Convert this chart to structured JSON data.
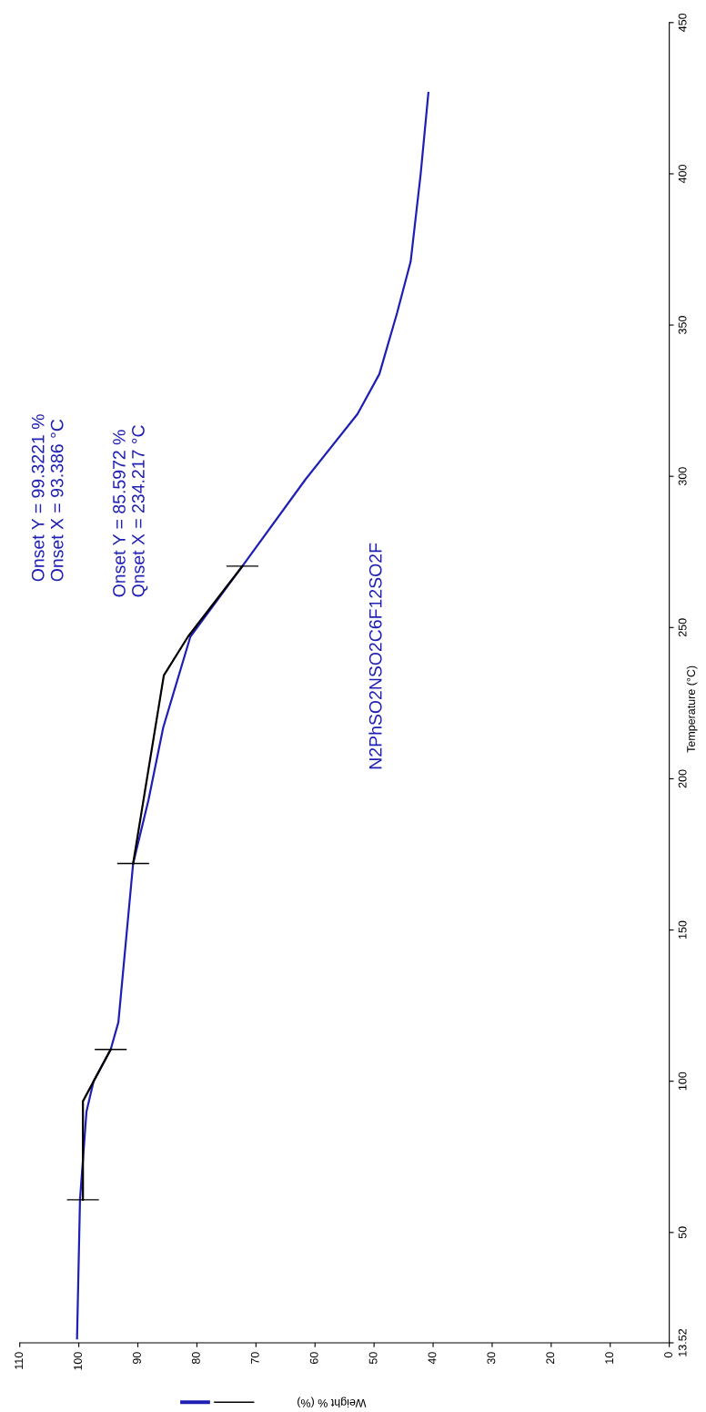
{
  "chart_data": {
    "type": "line",
    "xlabel": "Weight % (%)",
    "ylabel": "Temperature (°C)",
    "xlim": [
      110,
      0
    ],
    "xticks": [
      0,
      10,
      20,
      30,
      40,
      50,
      60,
      70,
      80,
      90,
      100,
      110
    ],
    "ylim": [
      13.52,
      450
    ],
    "yticks": [
      13.52,
      50,
      100,
      150,
      200,
      250,
      300,
      350,
      400,
      450
    ],
    "grid": false,
    "legend": false,
    "series": [
      {
        "color": "#1f1fb4",
        "x": [
          100.3,
          99.8,
          98.7,
          97.5,
          94.6,
          93.3,
          90.8,
          88.2,
          85.7,
          81.1,
          72.3,
          61.6,
          52.8,
          49.1,
          46.1,
          43.8,
          42.1,
          40.8
        ],
        "values": [
          15,
          60.8,
          90,
          100,
          110.5,
          119.5,
          172,
          193,
          217,
          247,
          270.3,
          299,
          320.6,
          333.8,
          354,
          371,
          400,
          426.8
        ]
      },
      {
        "color": "#000000",
        "x": [
          99.3,
          99.3,
          94.6
        ],
        "values": [
          60.8,
          93.4,
          110.5
        ],
        "xerrors": [
          2.7,
          null,
          2.7
        ]
      },
      {
        "color": "#000000",
        "x": [
          90.8,
          85.6,
          81.5,
          72.3
        ],
        "values": [
          172,
          234.2,
          247,
          270.3
        ],
        "xerrors": [
          2.7,
          null,
          null,
          2.7
        ]
      }
    ],
    "annotations": [
      "Onset Y = 99.3221 %\nOnset X = 93.386 °C",
      "Onset Y = 85.5972 %\nQnset X = 234.217 °C",
      "N2PhSO2NSO2C6F12SO2F"
    ]
  }
}
